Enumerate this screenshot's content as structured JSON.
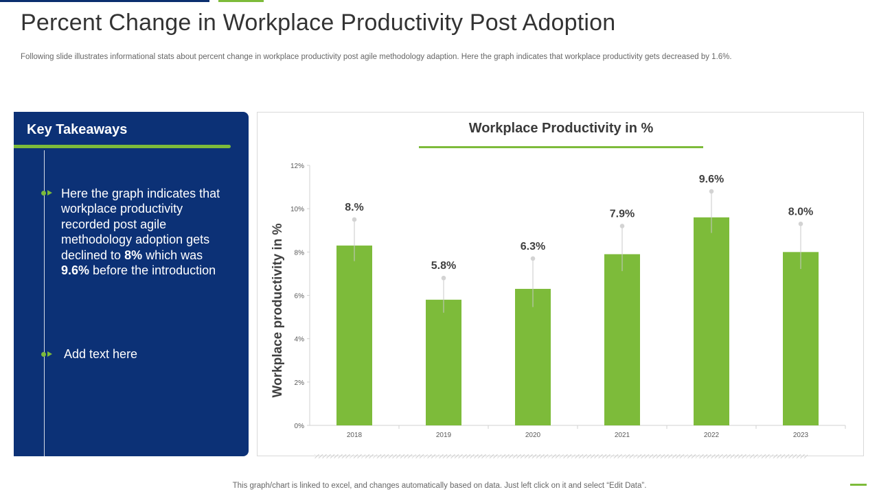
{
  "page": {
    "title": "Percent Change in Workplace Productivity Post Adoption",
    "subtitle": "Following slide illustrates informational stats about percent change in workplace productivity post agile methodology adaption. Here the graph indicates that workplace productivity gets decreased by 1.6%.",
    "footer": "This graph/chart is linked to excel,  and changes automatically based on data. Just left click on it and select “Edit Data”."
  },
  "takeaways": {
    "heading": "Key Takeaways",
    "bullet1": {
      "line1": "Here the graph indicates that",
      "line2": "workplace productivity",
      "line3": "recorded post agile",
      "line4": "methodology adoption gets",
      "line5_prefix": "declined to ",
      "line5_bold": "8%",
      "line5_suffix": " which  was",
      "line6_bold": "9.6%",
      "line6_suffix": " before the introduction"
    },
    "bullet2": "Add text here"
  },
  "colors": {
    "panel": "#0c3176",
    "accent": "#7dbb3a",
    "bar": "#7dbb3a"
  },
  "chart_data": {
    "type": "bar",
    "title": "Workplace Productivity  in %",
    "xlabel": "",
    "ylabel": "Workplace productivity  in %",
    "categories": [
      "2018",
      "2019",
      "2020",
      "2021",
      "2022",
      "2023"
    ],
    "values": [
      8.3,
      5.8,
      6.3,
      7.9,
      9.6,
      8.0
    ],
    "data_labels": [
      "8.%",
      "5.8%",
      "6.3%",
      "7.9%",
      "9.6%",
      "8.0%"
    ],
    "ylim": [
      0,
      12
    ],
    "yticks": [
      0,
      2,
      4,
      6,
      8,
      10,
      12
    ],
    "ytick_labels": [
      "0%",
      "2%",
      "4%",
      "6%",
      "8%",
      "10%",
      "12%"
    ],
    "grid": false
  }
}
